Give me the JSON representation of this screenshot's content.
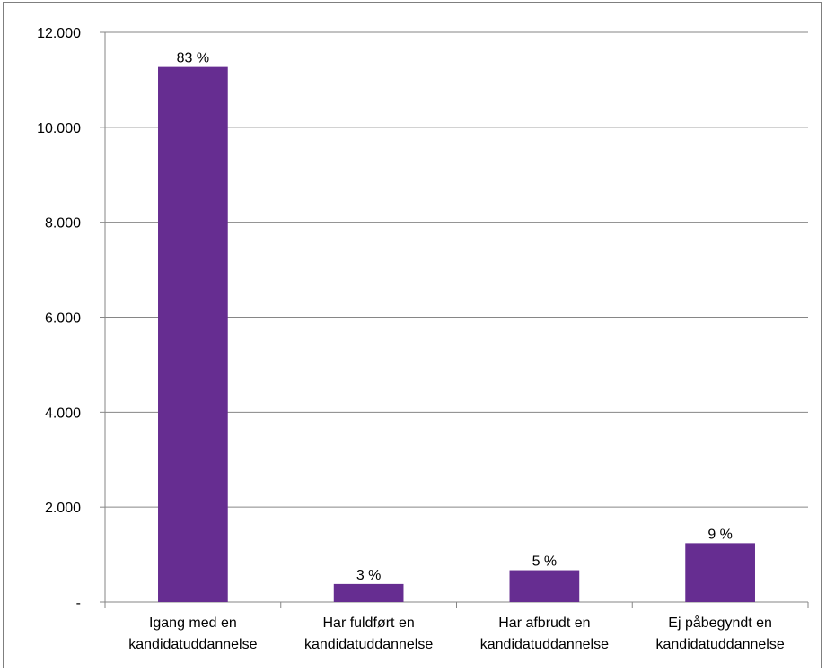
{
  "chart_data": {
    "type": "bar",
    "title": "",
    "xlabel": "",
    "ylabel": "",
    "ylim": [
      0,
      12000
    ],
    "yticks": [
      0,
      2000,
      4000,
      6000,
      8000,
      10000,
      12000
    ],
    "ytick_labels": [
      "-",
      "2.000",
      "4.000",
      "6.000",
      "8.000",
      "10.000",
      "12.000"
    ],
    "grid": true,
    "legend": "none",
    "bar_color": "#662d91",
    "categories": [
      [
        "Igang med en",
        "kandidatuddannelse"
      ],
      [
        "Har fuldført en",
        "kandidatuddannelse"
      ],
      [
        "Har afbrudt en",
        "kandidatuddannelse"
      ],
      [
        "Ej påbegyndt en",
        "kandidatuddannelse"
      ]
    ],
    "values": [
      11270,
      380,
      670,
      1240
    ],
    "data_labels": [
      "83 %",
      "3 %",
      "5 %",
      "9 %"
    ]
  }
}
